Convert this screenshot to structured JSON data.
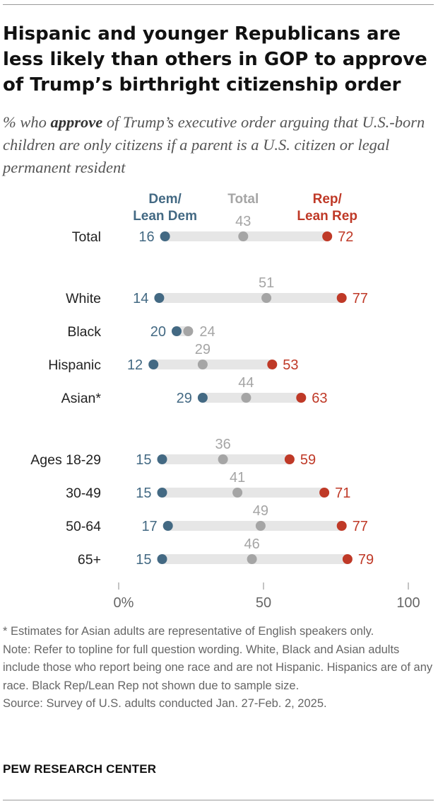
{
  "header": {
    "title": "Hispanic and younger Republicans are less likely than others in GOP to approve of Trump’s birthright citizenship order",
    "subtitle_pre": "% who ",
    "subtitle_em": "approve",
    "subtitle_post": " of Trump’s executive order arguing that U.S.-born children are only citizens if a parent is a U.S. citizen or legal permanent resident"
  },
  "colors": {
    "dem": "#436983",
    "total": "#a5a5a5",
    "rep": "#bf3927",
    "bar": "#e6e6e6",
    "axis_text": "#666666"
  },
  "chart_data": {
    "type": "dot",
    "legend": [
      {
        "key": "dem",
        "lines": [
          "Dem/",
          "Lean Dem"
        ]
      },
      {
        "key": "total",
        "lines": [
          "Total"
        ]
      },
      {
        "key": "rep",
        "lines": [
          "Rep/",
          "Lean Rep"
        ]
      }
    ],
    "groups": [
      {
        "rows": [
          {
            "label": "Total",
            "dem": 16,
            "total": 43,
            "rep": 72
          }
        ]
      },
      {
        "rows": [
          {
            "label": "White",
            "dem": 14,
            "total": 51,
            "rep": 77
          },
          {
            "label": "Black",
            "dem": 20,
            "total": 24,
            "rep": null
          },
          {
            "label": "Hispanic",
            "dem": 12,
            "total": 29,
            "rep": 53
          },
          {
            "label": "Asian*",
            "dem": 29,
            "total": 44,
            "rep": 63
          }
        ]
      },
      {
        "rows": [
          {
            "label": "Ages 18-29",
            "dem": 15,
            "total": 36,
            "rep": 59
          },
          {
            "label": "30-49",
            "dem": 15,
            "total": 41,
            "rep": 71
          },
          {
            "label": "50-64",
            "dem": 17,
            "total": 49,
            "rep": 77
          },
          {
            "label": "65+",
            "dem": 15,
            "total": 46,
            "rep": 79
          }
        ]
      }
    ],
    "x_ticks": [
      {
        "value": 0,
        "label": "0%"
      },
      {
        "value": 50,
        "label": "50"
      },
      {
        "value": 100,
        "label": "100"
      }
    ],
    "xlim": [
      0,
      100
    ]
  },
  "footer": {
    "notes": [
      "* Estimates for Asian adults are representative of English speakers only.",
      "Note: Refer to topline for full question wording. White, Black and Asian adults include those who report being one race and are not Hispanic. Hispanics are of any race. Black Rep/Lean Rep not shown due to sample size.",
      "Source: Survey of U.S. adults conducted Jan. 27-Feb. 2, 2025."
    ],
    "brand": "PEW RESEARCH CENTER"
  }
}
